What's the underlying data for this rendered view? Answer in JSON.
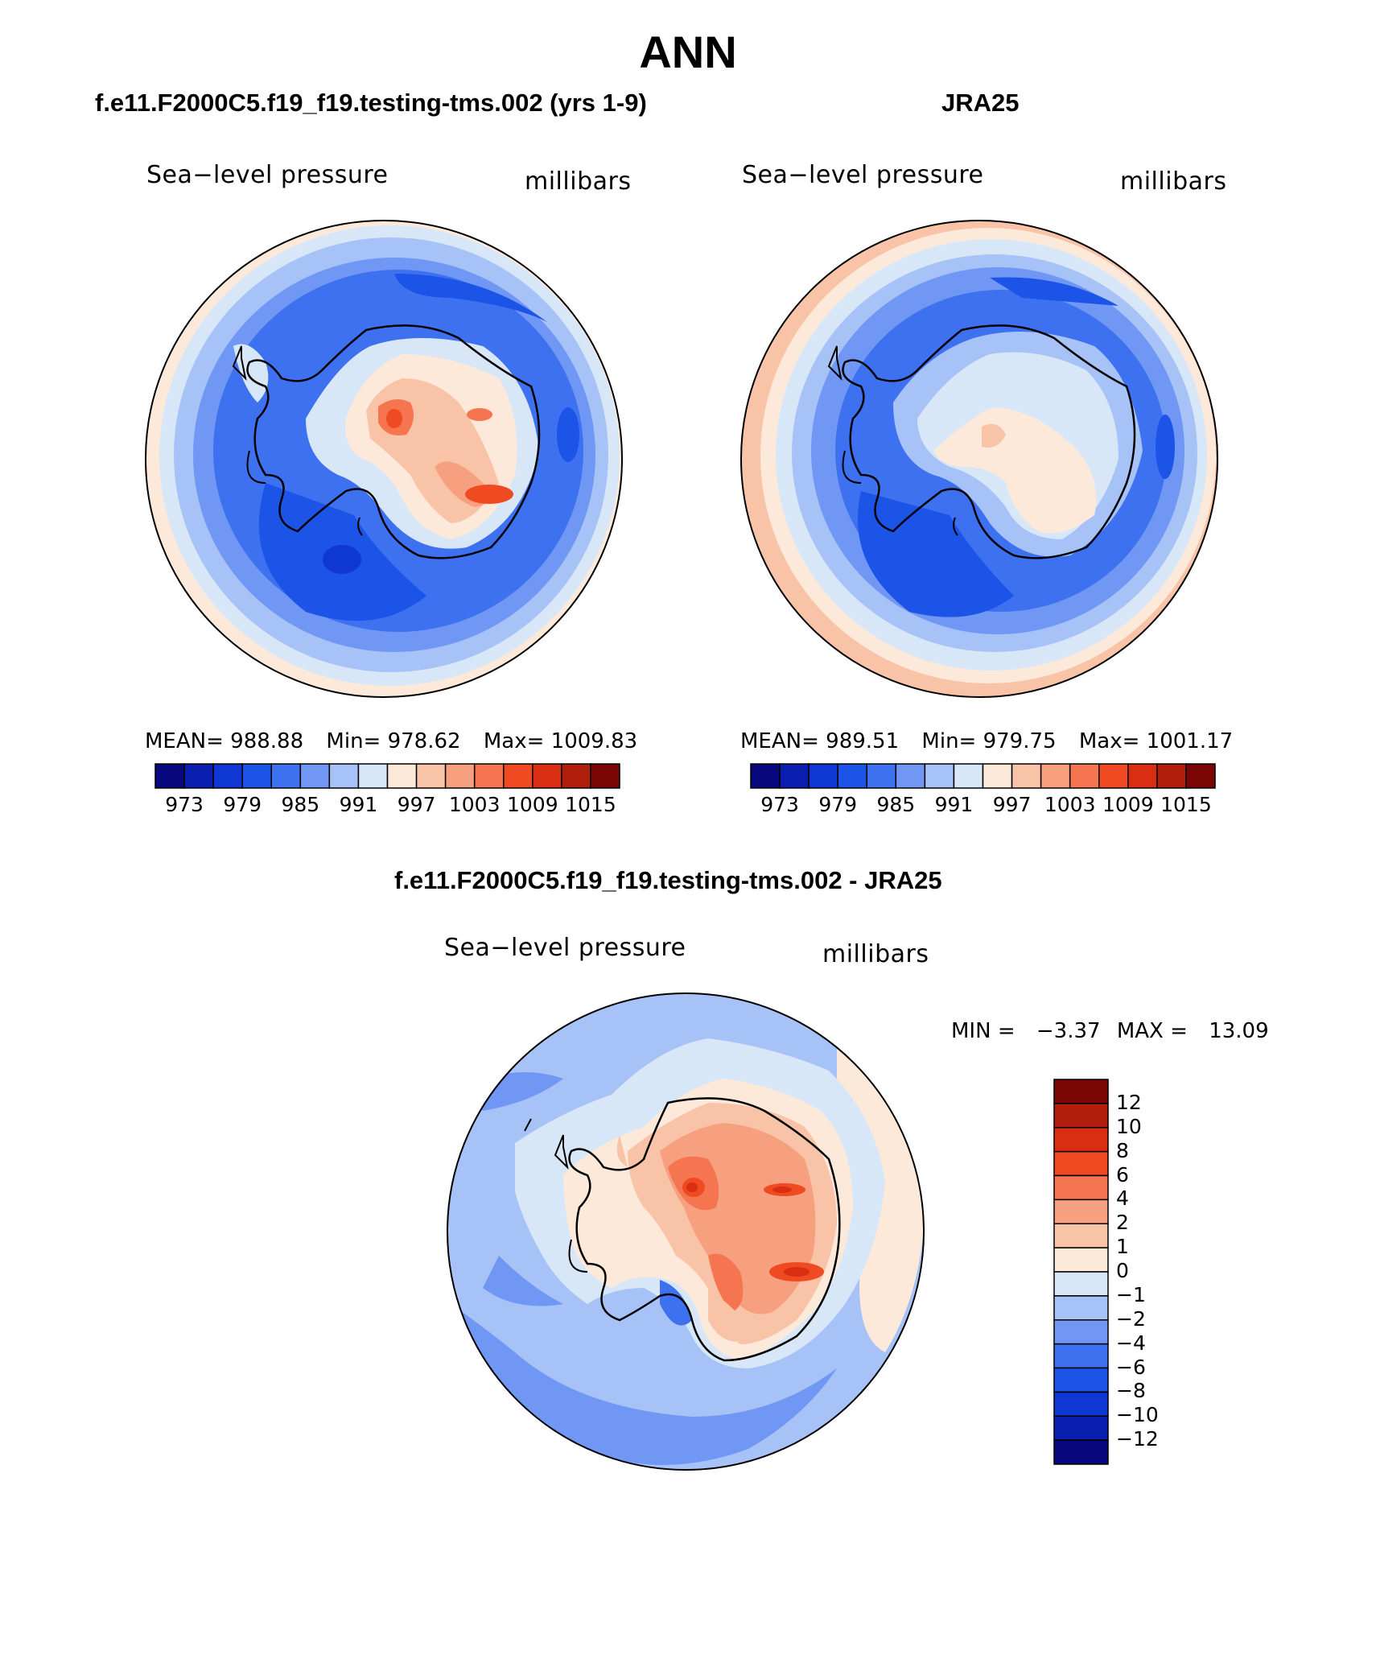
{
  "title": "ANN",
  "panels": [
    {
      "case": "f.e11.F2000C5.f19_f19.testing-tms.002 (yrs 1-9)",
      "variable": "Sea−level pressure",
      "units": "millibars",
      "stats": {
        "mean_label": "MEAN=",
        "mean": "988.88",
        "min_label": "Min=",
        "min": "978.62",
        "max_label": "Max=",
        "max": "1009.83"
      },
      "colorbar_labels": [
        "973",
        "979",
        "985",
        "991",
        "997",
        "1003",
        "1009",
        "1015"
      ]
    },
    {
      "case": "JRA25",
      "variable": "Sea−level pressure",
      "units": "millibars",
      "stats": {
        "mean_label": "MEAN=",
        "mean": "989.51",
        "min_label": "Min=",
        "min": "979.75",
        "max_label": "Max=",
        "max": "1001.17"
      },
      "colorbar_labels": [
        "973",
        "979",
        "985",
        "991",
        "997",
        "1003",
        "1009",
        "1015"
      ]
    }
  ],
  "difference": {
    "case": "f.e11.F2000C5.f19_f19.testing-tms.002 - JRA25",
    "variable": "Sea−level pressure",
    "units": "millibars",
    "min_label": "MIN =",
    "min": "−3.37",
    "max_label": "MAX =",
    "max": "13.09",
    "colorbar_labels": [
      "12",
      "10",
      "8",
      "6",
      "4",
      "2",
      "1",
      "0",
      "−1",
      "−2",
      "−4",
      "−6",
      "−8",
      "−10",
      "−12"
    ]
  },
  "colors": {
    "abs_scale": [
      "#08087e",
      "#0a1fb0",
      "#0f37d4",
      "#1d54e8",
      "#3e71f0",
      "#7097f3",
      "#a6c2f6",
      "#d8e7f8",
      "#fde9da",
      "#f9c3a8",
      "#f6a07f",
      "#f57550",
      "#ef4a22",
      "#d92e12",
      "#b21e0c",
      "#7c0505"
    ],
    "diff_scale": [
      "#7c0505",
      "#b21e0c",
      "#d92e12",
      "#ef4a22",
      "#f57550",
      "#f6a07f",
      "#f9c3a8",
      "#fde9da",
      "#d8e7f8",
      "#a6c2f6",
      "#7097f3",
      "#3e71f0",
      "#1d54e8",
      "#0f37d4",
      "#0a1fb0",
      "#08087e"
    ]
  }
}
